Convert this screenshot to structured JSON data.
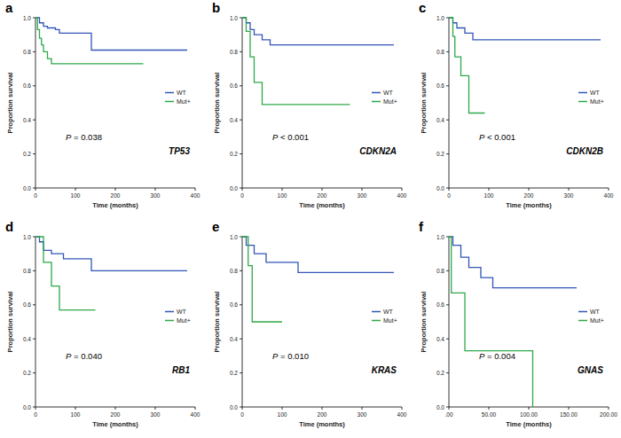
{
  "chart_data": [
    {
      "type": "line",
      "line_style": "step",
      "panel_label": "a",
      "title": "TP53",
      "annotations": [
        "P = 0.038"
      ],
      "x_label": "Time (months)",
      "y_label": "Proportion survival",
      "legend": "lower right",
      "xlim": [
        0,
        400
      ],
      "xticks": [
        0,
        100,
        200,
        300,
        400
      ],
      "ylim": [
        0,
        1
      ],
      "yticks": [
        {
          "value": 0,
          "label": "0.0"
        },
        0.2,
        0.4,
        0.6,
        0.8,
        {
          "value": 1,
          "label": "1.0"
        }
      ],
      "series": [
        {
          "name": "WT",
          "color": "#3355b8",
          "x": [
            0,
            10,
            20,
            30,
            50,
            60,
            140,
            380
          ],
          "values": [
            1,
            0.97,
            0.95,
            0.94,
            0.93,
            0.91,
            0.81,
            0.81
          ]
        },
        {
          "name": "Mut+",
          "color": "#2ea84a",
          "x": [
            0,
            5,
            10,
            15,
            20,
            30,
            40,
            270
          ],
          "values": [
            1,
            0.93,
            0.88,
            0.84,
            0.8,
            0.76,
            0.73,
            0.73
          ]
        }
      ]
    },
    {
      "type": "line",
      "line_style": "step",
      "panel_label": "b",
      "title": "CDKN2A",
      "annotations": [
        "P < 0.001"
      ],
      "x_label": "Time (months)",
      "y_label": "Proportion survival",
      "legend": "lower right",
      "xlim": [
        0,
        400
      ],
      "xticks": [
        0,
        100,
        200,
        300,
        400
      ],
      "ylim": [
        0,
        1
      ],
      "yticks": [
        {
          "value": 0,
          "label": "0.0"
        },
        0.2,
        0.4,
        0.6,
        0.8,
        {
          "value": 1,
          "label": "1.0"
        }
      ],
      "series": [
        {
          "name": "WT",
          "color": "#3355b8",
          "x": [
            0,
            10,
            20,
            30,
            50,
            70,
            380
          ],
          "values": [
            1,
            0.97,
            0.93,
            0.9,
            0.87,
            0.84,
            0.84
          ]
        },
        {
          "name": "Mut+",
          "color": "#2ea84a",
          "x": [
            0,
            10,
            20,
            30,
            50,
            270
          ],
          "values": [
            1,
            0.92,
            0.77,
            0.62,
            0.49,
            0.49
          ]
        }
      ]
    },
    {
      "type": "line",
      "line_style": "step",
      "panel_label": "c",
      "title": "CDKN2B",
      "annotations": [
        "P < 0.001"
      ],
      "x_label": "Time (months)",
      "y_label": "Proportion survival",
      "legend": "lower right",
      "xlim": [
        0,
        400
      ],
      "xticks": [
        0,
        100,
        200,
        300,
        400
      ],
      "ylim": [
        0,
        1
      ],
      "yticks": [
        {
          "value": 0,
          "label": "0.0"
        },
        0.2,
        0.4,
        0.6,
        0.8,
        {
          "value": 1,
          "label": "1.0"
        }
      ],
      "series": [
        {
          "name": "WT",
          "color": "#3355b8",
          "x": [
            0,
            10,
            20,
            40,
            60,
            380
          ],
          "values": [
            1,
            0.97,
            0.94,
            0.91,
            0.87,
            0.87
          ]
        },
        {
          "name": "Mut+",
          "color": "#2ea84a",
          "x": [
            0,
            10,
            15,
            30,
            50,
            90
          ],
          "values": [
            1,
            0.89,
            0.77,
            0.66,
            0.44,
            0.44
          ]
        }
      ]
    },
    {
      "type": "line",
      "line_style": "step",
      "panel_label": "d",
      "title": "RB1",
      "annotations": [
        "P = 0.040"
      ],
      "x_label": "Time (months)",
      "y_label": "Proportion survival",
      "legend": "lower right",
      "xlim": [
        0,
        400
      ],
      "xticks": [
        0,
        100,
        200,
        300,
        400
      ],
      "ylim": [
        0,
        1
      ],
      "yticks": [
        {
          "value": 0,
          "label": "0.0"
        },
        0.2,
        0.4,
        0.6,
        0.8,
        {
          "value": 1,
          "label": "1.0"
        }
      ],
      "series": [
        {
          "name": "WT",
          "color": "#3355b8",
          "x": [
            0,
            10,
            20,
            40,
            70,
            140,
            380
          ],
          "values": [
            1,
            0.97,
            0.92,
            0.9,
            0.87,
            0.8,
            0.8
          ]
        },
        {
          "name": "Mut+",
          "color": "#2ea84a",
          "x": [
            0,
            20,
            40,
            60,
            150
          ],
          "values": [
            1,
            0.85,
            0.71,
            0.57,
            0.57
          ]
        }
      ]
    },
    {
      "type": "line",
      "line_style": "step",
      "panel_label": "e",
      "title": "KRAS",
      "annotations": [
        "P = 0.010"
      ],
      "x_label": "Time (months)",
      "y_label": "Proportion survival",
      "legend": "lower right",
      "xlim": [
        0,
        400
      ],
      "xticks": [
        0,
        100,
        200,
        300,
        400
      ],
      "ylim": [
        0,
        1
      ],
      "yticks": [
        {
          "value": 0,
          "label": "0.0"
        },
        0.2,
        0.4,
        0.6,
        0.8,
        {
          "value": 1,
          "label": "1.0"
        }
      ],
      "series": [
        {
          "name": "WT",
          "color": "#3355b8",
          "x": [
            0,
            10,
            30,
            60,
            140,
            380
          ],
          "values": [
            1,
            0.95,
            0.9,
            0.85,
            0.79,
            0.79
          ]
        },
        {
          "name": "Mut+",
          "color": "#2ea84a",
          "x": [
            0,
            15,
            25,
            100
          ],
          "values": [
            1,
            0.83,
            0.5,
            0.5
          ]
        }
      ]
    },
    {
      "type": "line",
      "line_style": "step",
      "panel_label": "f",
      "title": "GNAS",
      "annotations": [
        "P = 0.004"
      ],
      "x_label": "Time (months)",
      "y_label": "Proportion survival",
      "legend": "lower right",
      "xlim": [
        0,
        200
      ],
      "xticks": [
        {
          "value": 0,
          "label": ".00"
        },
        {
          "value": 50,
          "label": "50.00"
        },
        {
          "value": 100,
          "label": "100.00"
        },
        {
          "value": 150,
          "label": "150.00"
        },
        {
          "value": 200,
          "label": "200.00"
        }
      ],
      "ylim": [
        0,
        1
      ],
      "yticks": [
        {
          "value": 0,
          "label": "0.0"
        },
        0.2,
        0.4,
        0.6,
        0.8,
        {
          "value": 1,
          "label": "1.0"
        }
      ],
      "series": [
        {
          "name": "WT",
          "color": "#3355b8",
          "x": [
            0,
            5,
            15,
            25,
            40,
            55,
            160
          ],
          "values": [
            1,
            0.95,
            0.88,
            0.82,
            0.76,
            0.7,
            0.7
          ]
        },
        {
          "name": "Mut+",
          "color": "#2ea84a",
          "x": [
            0,
            3,
            20,
            105
          ],
          "values": [
            1,
            0.67,
            0.33,
            0
          ]
        }
      ]
    }
  ]
}
